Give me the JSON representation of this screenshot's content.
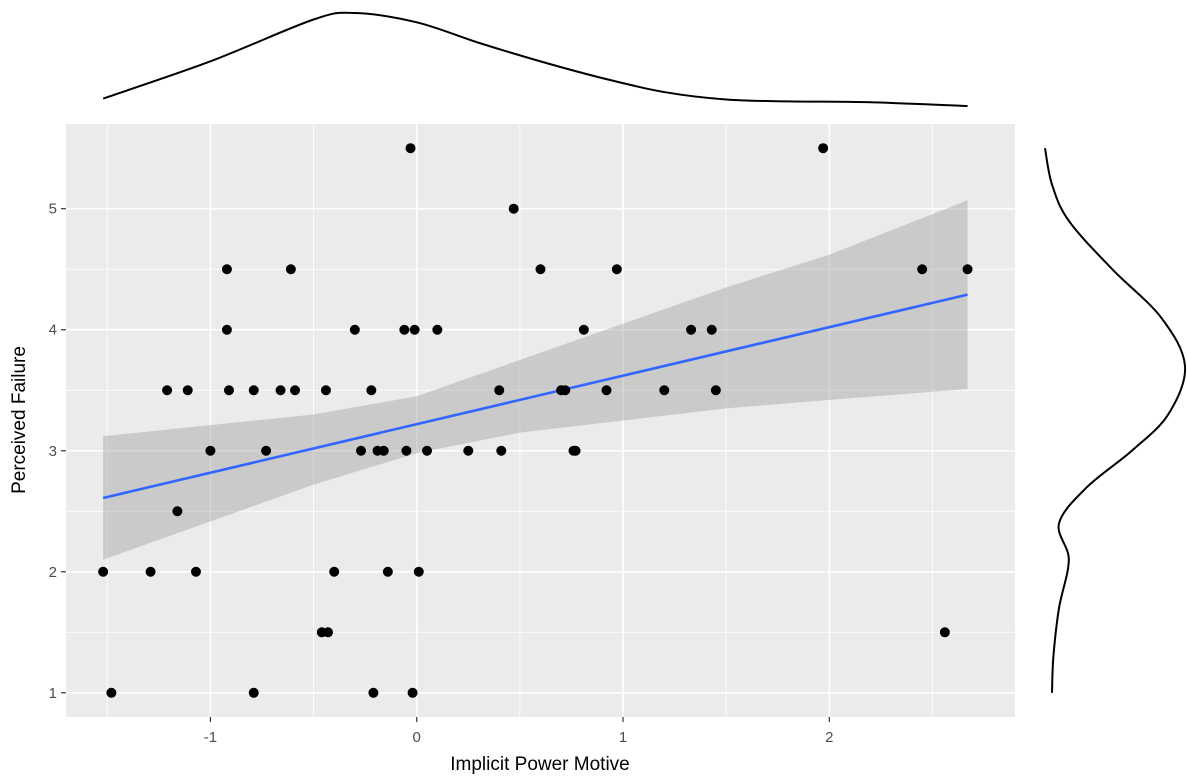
{
  "chart_data": {
    "type": "scatter",
    "title": "",
    "xlabel": "Implicit Power Motive",
    "ylabel": "Perceived Failure",
    "xlim": [
      -1.7,
      2.9
    ],
    "ylim": [
      0.8,
      5.7
    ],
    "x_ticks": [
      -1,
      0,
      1,
      2
    ],
    "x_tick_labels": [
      "-1",
      "0",
      "1",
      "2"
    ],
    "y_ticks": [
      1,
      2,
      3,
      4,
      5
    ],
    "y_tick_labels": [
      "1",
      "2",
      "3",
      "4",
      "5"
    ],
    "grid": true,
    "panel_background": "#ebebeb",
    "point_color": "#000000",
    "points": [
      {
        "x": -1.52,
        "y": 2.0
      },
      {
        "x": -1.48,
        "y": 1.0
      },
      {
        "x": -1.29,
        "y": 2.0
      },
      {
        "x": -1.21,
        "y": 3.5
      },
      {
        "x": -1.16,
        "y": 2.5
      },
      {
        "x": -1.11,
        "y": 3.5
      },
      {
        "x": -1.07,
        "y": 2.0
      },
      {
        "x": -1.0,
        "y": 3.0
      },
      {
        "x": -0.92,
        "y": 4.5
      },
      {
        "x": -0.92,
        "y": 4.0
      },
      {
        "x": -0.91,
        "y": 3.5
      },
      {
        "x": -0.79,
        "y": 3.5
      },
      {
        "x": -0.79,
        "y": 1.0
      },
      {
        "x": -0.73,
        "y": 3.0
      },
      {
        "x": -0.66,
        "y": 3.5
      },
      {
        "x": -0.61,
        "y": 4.5
      },
      {
        "x": -0.59,
        "y": 3.5
      },
      {
        "x": -0.46,
        "y": 1.5
      },
      {
        "x": -0.43,
        "y": 1.5
      },
      {
        "x": -0.44,
        "y": 3.5
      },
      {
        "x": -0.4,
        "y": 2.0
      },
      {
        "x": -0.3,
        "y": 4.0
      },
      {
        "x": -0.27,
        "y": 3.0
      },
      {
        "x": -0.22,
        "y": 3.5
      },
      {
        "x": -0.21,
        "y": 1.0
      },
      {
        "x": -0.19,
        "y": 3.0
      },
      {
        "x": -0.16,
        "y": 3.0
      },
      {
        "x": -0.14,
        "y": 2.0
      },
      {
        "x": -0.06,
        "y": 4.0
      },
      {
        "x": -0.05,
        "y": 3.0
      },
      {
        "x": -0.03,
        "y": 5.5
      },
      {
        "x": -0.02,
        "y": 1.0
      },
      {
        "x": -0.01,
        "y": 4.0
      },
      {
        "x": 0.01,
        "y": 2.0
      },
      {
        "x": 0.05,
        "y": 3.0
      },
      {
        "x": 0.1,
        "y": 4.0
      },
      {
        "x": 0.25,
        "y": 3.0
      },
      {
        "x": 0.4,
        "y": 3.5
      },
      {
        "x": 0.41,
        "y": 3.0
      },
      {
        "x": 0.47,
        "y": 5.0
      },
      {
        "x": 0.6,
        "y": 4.5
      },
      {
        "x": 0.7,
        "y": 3.5
      },
      {
        "x": 0.72,
        "y": 3.5
      },
      {
        "x": 0.76,
        "y": 3.0
      },
      {
        "x": 0.77,
        "y": 3.0
      },
      {
        "x": 0.81,
        "y": 4.0
      },
      {
        "x": 0.92,
        "y": 3.5
      },
      {
        "x": 0.97,
        "y": 4.5
      },
      {
        "x": 1.2,
        "y": 3.5
      },
      {
        "x": 1.33,
        "y": 4.0
      },
      {
        "x": 1.43,
        "y": 4.0
      },
      {
        "x": 1.45,
        "y": 3.5
      },
      {
        "x": 1.97,
        "y": 5.5
      },
      {
        "x": 2.45,
        "y": 4.5
      },
      {
        "x": 2.56,
        "y": 1.5
      },
      {
        "x": 2.67,
        "y": 4.5
      }
    ],
    "regression": {
      "line": [
        {
          "x": -1.52,
          "y": 2.61
        },
        {
          "x": 2.67,
          "y": 4.29
        }
      ],
      "ci_upper": [
        {
          "x": -1.52,
          "y": 3.12
        },
        {
          "x": -0.5,
          "y": 3.3
        },
        {
          "x": 0.0,
          "y": 3.45
        },
        {
          "x": 0.5,
          "y": 3.75
        },
        {
          "x": 1.0,
          "y": 4.05
        },
        {
          "x": 1.5,
          "y": 4.35
        },
        {
          "x": 2.0,
          "y": 4.62
        },
        {
          "x": 2.67,
          "y": 5.07
        }
      ],
      "ci_lower": [
        {
          "x": -1.52,
          "y": 2.1
        },
        {
          "x": -0.5,
          "y": 2.72
        },
        {
          "x": 0.0,
          "y": 2.98
        },
        {
          "x": 0.5,
          "y": 3.15
        },
        {
          "x": 1.0,
          "y": 3.25
        },
        {
          "x": 1.5,
          "y": 3.35
        },
        {
          "x": 2.0,
          "y": 3.42
        },
        {
          "x": 2.67,
          "y": 3.51
        }
      ],
      "line_color": "#3366ff",
      "band_color": "#999999"
    },
    "marginal_x_density": [
      {
        "x": -1.52,
        "d": 0.08
      },
      {
        "x": -1.0,
        "d": 0.48
      },
      {
        "x": -0.5,
        "d": 0.93
      },
      {
        "x": -0.3,
        "d": 1.0
      },
      {
        "x": 0.0,
        "d": 0.9
      },
      {
        "x": 0.3,
        "d": 0.68
      },
      {
        "x": 0.6,
        "d": 0.48
      },
      {
        "x": 0.9,
        "d": 0.3
      },
      {
        "x": 1.2,
        "d": 0.15
      },
      {
        "x": 1.5,
        "d": 0.07
      },
      {
        "x": 1.8,
        "d": 0.05
      },
      {
        "x": 2.2,
        "d": 0.04
      },
      {
        "x": 2.67,
        "d": 0.0
      }
    ],
    "marginal_y_density": [
      {
        "y": 5.5,
        "d": 0.0
      },
      {
        "y": 5.2,
        "d": 0.05
      },
      {
        "y": 4.9,
        "d": 0.17
      },
      {
        "y": 4.5,
        "d": 0.48
      },
      {
        "y": 4.1,
        "d": 0.83
      },
      {
        "y": 3.7,
        "d": 1.0
      },
      {
        "y": 3.3,
        "d": 0.88
      },
      {
        "y": 3.0,
        "d": 0.62
      },
      {
        "y": 2.7,
        "d": 0.3
      },
      {
        "y": 2.4,
        "d": 0.1
      },
      {
        "y": 2.1,
        "d": 0.17
      },
      {
        "y": 1.7,
        "d": 0.1
      },
      {
        "y": 1.3,
        "d": 0.06
      },
      {
        "y": 1.0,
        "d": 0.05
      }
    ]
  }
}
